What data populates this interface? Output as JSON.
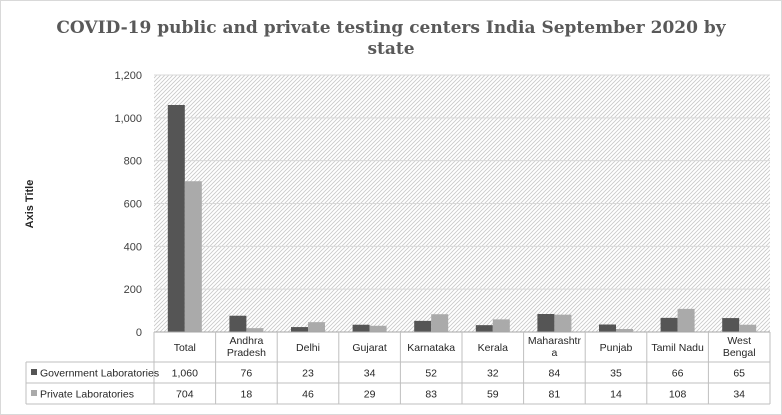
{
  "chart_data": {
    "type": "bar",
    "title": "COVID-19 public and private testing centers India September 2020 by state",
    "title_lines": [
      "COVID-19 public and private testing centers India September 2020 by",
      "state"
    ],
    "ylabel": "Axis Title",
    "xlabel": "",
    "ylim": [
      0,
      1200
    ],
    "yticks": [
      0,
      200,
      400,
      600,
      800,
      1000,
      1200
    ],
    "ytick_labels": [
      "0",
      "200",
      "400",
      "600",
      "800",
      "1,000",
      "1,200"
    ],
    "grid": true,
    "legend": "data-table-left",
    "categories": [
      "Total",
      "Andhra Pradesh",
      "Delhi",
      "Gujarat",
      "Karnataka",
      "Kerala",
      "Maharashtra",
      "Punjab",
      "Tamil Nadu",
      "West Bengal"
    ],
    "category_label_lines": [
      [
        "Total"
      ],
      [
        "Andhra",
        "Pradesh"
      ],
      [
        "Delhi"
      ],
      [
        "Gujarat"
      ],
      [
        "Karnataka"
      ],
      [
        "Kerala"
      ],
      [
        "Maharashtr",
        "a"
      ],
      [
        "Punjab"
      ],
      [
        "Tamil Nadu"
      ],
      [
        "West",
        "Bengal"
      ]
    ],
    "series": [
      {
        "name": "Government Laboratories",
        "color": "#555555",
        "values": [
          1060,
          76,
          23,
          34,
          52,
          32,
          84,
          35,
          66,
          65
        ],
        "labels": [
          "1,060",
          "76",
          "23",
          "34",
          "52",
          "32",
          "84",
          "35",
          "66",
          "65"
        ]
      },
      {
        "name": "Private Laboratories",
        "color": "#aaaaaa",
        "values": [
          704,
          18,
          46,
          29,
          83,
          59,
          81,
          14,
          108,
          34
        ],
        "labels": [
          "704",
          "18",
          "46",
          "29",
          "83",
          "59",
          "81",
          "14",
          "108",
          "34"
        ]
      }
    ]
  }
}
